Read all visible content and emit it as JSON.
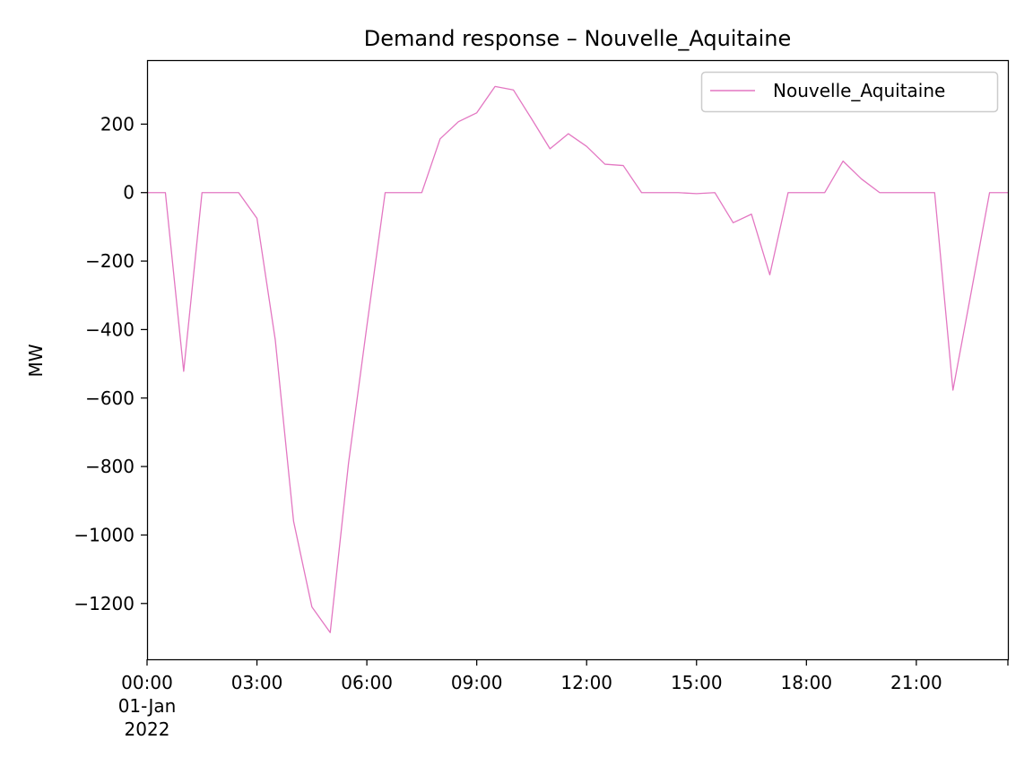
{
  "chart_data": {
    "type": "line",
    "title": "Demand response – Nouvelle_Aquitaine",
    "ylabel": "MW",
    "xlabel": "",
    "x": [
      "00:00",
      "00:30",
      "01:00",
      "01:30",
      "02:00",
      "02:30",
      "03:00",
      "03:30",
      "04:00",
      "04:30",
      "05:00",
      "05:30",
      "06:00",
      "06:30",
      "07:00",
      "07:30",
      "08:00",
      "08:30",
      "09:00",
      "09:30",
      "10:00",
      "10:30",
      "11:00",
      "11:30",
      "12:00",
      "12:30",
      "13:00",
      "13:30",
      "14:00",
      "14:30",
      "15:00",
      "15:30",
      "16:00",
      "16:30",
      "17:00",
      "17:30",
      "18:00",
      "18:30",
      "19:00",
      "19:30",
      "20:00",
      "20:30",
      "21:00",
      "21:30",
      "22:00",
      "22:30",
      "23:00",
      "23:30"
    ],
    "series": [
      {
        "name": "Nouvelle_Aquitaine",
        "color": "#e377c2",
        "values": [
          0,
          0,
          -522,
          0,
          0,
          0,
          -75,
          -430,
          -960,
          -1210,
          -1285,
          -790,
          -390,
          0,
          0,
          0,
          157,
          207,
          233,
          310,
          300,
          215,
          128,
          172,
          135,
          83,
          79,
          0,
          0,
          0,
          -3,
          0,
          -88,
          -63,
          -240,
          0,
          0,
          0,
          92,
          40,
          0,
          0,
          0,
          0,
          -577,
          -290,
          0,
          0
        ]
      }
    ],
    "xticks": [
      {
        "x": "00:00",
        "lines": [
          "00:00",
          "01-Jan",
          "2022"
        ]
      },
      {
        "x": "03:00",
        "lines": [
          "03:00"
        ]
      },
      {
        "x": "06:00",
        "lines": [
          "06:00"
        ]
      },
      {
        "x": "09:00",
        "lines": [
          "09:00"
        ]
      },
      {
        "x": "12:00",
        "lines": [
          "12:00"
        ]
      },
      {
        "x": "15:00",
        "lines": [
          "15:00"
        ]
      },
      {
        "x": "18:00",
        "lines": [
          "18:00"
        ]
      },
      {
        "x": "21:00",
        "lines": [
          "21:00"
        ]
      }
    ],
    "yticks": [
      200,
      0,
      -200,
      -400,
      -600,
      -800,
      -1000,
      -1200
    ],
    "ytick_labels": [
      "200",
      "0",
      "−200",
      "−400",
      "−600",
      "−800",
      "−1000",
      "−1200"
    ],
    "ylim": [
      -1363,
      387
    ],
    "xlim": [
      "00:00",
      "23:30"
    ],
    "grid": false,
    "legend": "upper right"
  }
}
